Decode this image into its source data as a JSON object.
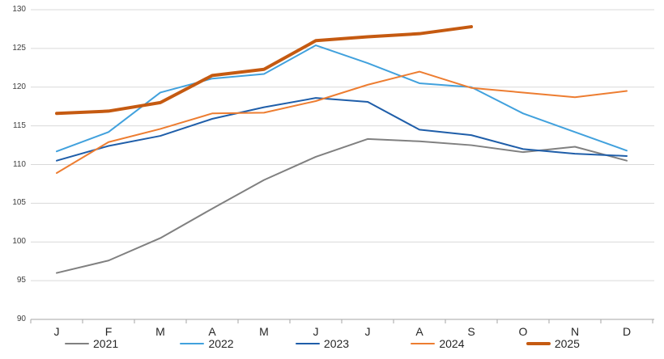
{
  "chart_data": {
    "type": "line",
    "title": "",
    "categories": [
      "J",
      "F",
      "M",
      "A",
      "M",
      "J",
      "J",
      "A",
      "S",
      "O",
      "N",
      "D"
    ],
    "series": [
      {
        "name": "2021",
        "color": "#808080",
        "stroke_width": 2,
        "values": [
          96.0,
          97.6,
          100.5,
          104.3,
          108.0,
          111.0,
          113.3,
          113.0,
          112.5,
          111.6,
          112.3,
          110.5
        ]
      },
      {
        "name": "2022",
        "color": "#41A1DD",
        "stroke_width": 2,
        "values": [
          111.7,
          114.2,
          119.3,
          121.1,
          121.7,
          125.4,
          123.1,
          120.5,
          120.0,
          116.6,
          114.2,
          111.8
        ]
      },
      {
        "name": "2023",
        "color": "#1F5EA9",
        "stroke_width": 2,
        "values": [
          110.5,
          112.4,
          113.7,
          115.9,
          117.4,
          118.6,
          118.1,
          114.5,
          113.8,
          112.0,
          111.4,
          111.1
        ]
      },
      {
        "name": "2024",
        "color": "#ED7D31",
        "stroke_width": 2,
        "values": [
          108.9,
          112.9,
          114.6,
          116.6,
          116.7,
          118.2,
          120.3,
          122.0,
          119.9,
          119.3,
          118.7,
          119.5
        ]
      },
      {
        "name": "2025",
        "color": "#C55A11",
        "stroke_width": 4,
        "values": [
          116.6,
          116.9,
          118.0,
          121.5,
          122.3,
          126.0,
          126.5,
          126.9,
          127.8,
          null,
          null,
          null
        ]
      }
    ],
    "y_axis": {
      "min": 90,
      "max": 130,
      "step": 5,
      "tick_labels": [
        "90",
        "95",
        "100",
        "105",
        "110",
        "115",
        "120",
        "125",
        "130"
      ]
    },
    "x_axis": {
      "tick_labels": [
        "J",
        "F",
        "M",
        "A",
        "M",
        "J",
        "J",
        "A",
        "S",
        "O",
        "N",
        "D"
      ]
    },
    "grid": true,
    "legend_position": "bottom"
  },
  "style": {
    "gridline_color": "#D9D9D9",
    "axis_color": "#A6A6A6",
    "y_text_color": "#404040",
    "x_text_color": "#262626"
  }
}
